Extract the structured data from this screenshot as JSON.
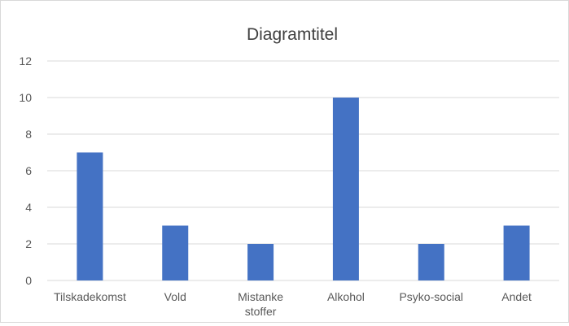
{
  "chart_data": {
    "type": "bar",
    "title": "Diagramtitel",
    "categories": [
      "Tilskadekomst",
      "Vold",
      "Mistanke stoffer",
      "Alkohol",
      "Psyko-social",
      "Andet"
    ],
    "category_label_lines": [
      [
        "Tilskadekomst"
      ],
      [
        "Vold"
      ],
      [
        "Mistanke",
        "stoffer"
      ],
      [
        "Alkohol"
      ],
      [
        "Psyko-social"
      ],
      [
        "Andet"
      ]
    ],
    "values": [
      7,
      3,
      2,
      10,
      2,
      3
    ],
    "ylim": [
      0,
      12
    ],
    "yticks": [
      "0",
      "2",
      "4",
      "6",
      "8",
      "10",
      "12"
    ],
    "xlabel": "",
    "ylabel": "",
    "grid": "horizontal",
    "legend": "none",
    "colors": {
      "bar": "#4472c4",
      "grid": "#d9d9d9",
      "text": "#595959",
      "title": "#404040"
    }
  }
}
